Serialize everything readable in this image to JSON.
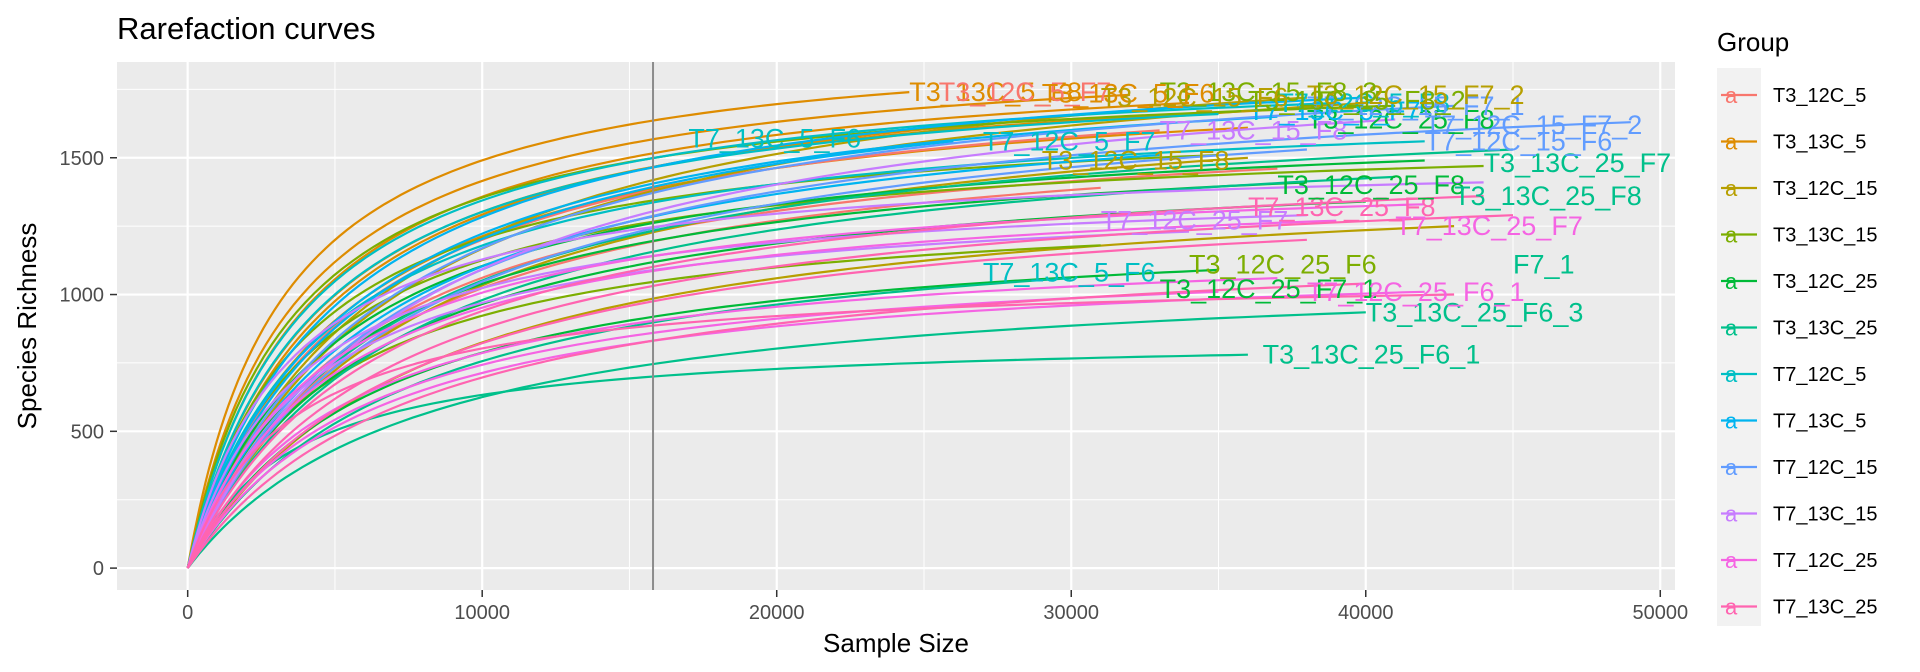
{
  "chart_data": {
    "type": "line",
    "title": "Rarefaction curves",
    "xlabel": "Sample Size",
    "ylabel": "Species Richness",
    "xlim": [
      -2400,
      50500
    ],
    "ylim": [
      -80,
      1850
    ],
    "x_ticks": [
      0,
      10000,
      20000,
      30000,
      40000,
      50000
    ],
    "x_tick_labels": [
      "0",
      "10000",
      "20000",
      "30000",
      "40000",
      "50000"
    ],
    "y_ticks": [
      0,
      500,
      1000,
      1500
    ],
    "y_tick_labels": [
      "0",
      "500",
      "1000",
      "1500"
    ],
    "grid": true,
    "vline": {
      "x": 15800,
      "color": "#8c8c8c"
    },
    "legend": {
      "title": "Group",
      "position": "right",
      "key_glyph": "a",
      "entries": [
        {
          "label": "T3_12C_5",
          "color": "#F8766D"
        },
        {
          "label": "T3_13C_5",
          "color": "#DE8C00"
        },
        {
          "label": "T3_12C_15",
          "color": "#B79F00"
        },
        {
          "label": "T3_13C_15",
          "color": "#7CAE00"
        },
        {
          "label": "T3_12C_25",
          "color": "#00BA38"
        },
        {
          "label": "T3_13C_25",
          "color": "#00C08B"
        },
        {
          "label": "T7_12C_5",
          "color": "#00BFC4"
        },
        {
          "label": "T7_13C_5",
          "color": "#00B4F0"
        },
        {
          "label": "T7_12C_15",
          "color": "#619CFF"
        },
        {
          "label": "T7_13C_15",
          "color": "#C77CFF"
        },
        {
          "label": "T7_12C_25",
          "color": "#F564E3"
        },
        {
          "label": "T7_13C_25",
          "color": "#FF64B0"
        }
      ]
    },
    "series": [
      {
        "name": "T3_13C_5",
        "group": 1,
        "xmax": 24500,
        "ymax": 1740
      },
      {
        "name": "T3_13C_5",
        "group": 1,
        "xmax": 32000,
        "ymax": 1730
      },
      {
        "name": "T3_13C_5",
        "group": 1,
        "xmax": 34000,
        "ymax": 1700
      },
      {
        "name": "T3_13C_5",
        "group": 1,
        "xmax": 38000,
        "ymax": 1680
      },
      {
        "name": "T3_13C_5",
        "group": 1,
        "xmax": 29000,
        "ymax": 1640
      },
      {
        "name": "T3_13C_5",
        "group": 1,
        "xmax": 36000,
        "ymax": 1610
      },
      {
        "name": "T3_12C_5",
        "group": 0,
        "xmax": 33000,
        "ymax": 1600
      },
      {
        "name": "T3_12C_5",
        "group": 0,
        "xmax": 37000,
        "ymax": 1460
      },
      {
        "name": "T3_12C_5",
        "group": 0,
        "xmax": 31000,
        "ymax": 1390
      },
      {
        "name": "T3_12C_15",
        "group": 2,
        "xmax": 38000,
        "ymax": 1720
      },
      {
        "name": "T3_12C_15",
        "group": 2,
        "xmax": 40000,
        "ymax": 1700
      },
      {
        "name": "T3_12C_15",
        "group": 2,
        "xmax": 36000,
        "ymax": 1500
      },
      {
        "name": "T3_12C_15",
        "group": 2,
        "xmax": 43000,
        "ymax": 1250
      },
      {
        "name": "T3_13C_15",
        "group": 3,
        "xmax": 41000,
        "ymax": 1690
      },
      {
        "name": "T3_13C_15",
        "group": 3,
        "xmax": 35000,
        "ymax": 1510
      },
      {
        "name": "T3_13C_15",
        "group": 3,
        "xmax": 44000,
        "ymax": 1470
      },
      {
        "name": "T3_13C_15",
        "group": 3,
        "xmax": 31000,
        "ymax": 1180
      },
      {
        "name": "T3_12C_25",
        "group": 4,
        "xmax": 42000,
        "ymax": 1490
      },
      {
        "name": "T3_12C_25",
        "group": 4,
        "xmax": 38000,
        "ymax": 1410
      },
      {
        "name": "T3_12C_25",
        "group": 4,
        "xmax": 40000,
        "ymax": 1340
      },
      {
        "name": "T3_12C_25",
        "group": 4,
        "xmax": 35000,
        "ymax": 1090
      },
      {
        "name": "T3_13C_25",
        "group": 5,
        "xmax": 45000,
        "ymax": 1530
      },
      {
        "name": "T3_13C_25",
        "group": 5,
        "xmax": 41000,
        "ymax": 1430
      },
      {
        "name": "T3_13C_25",
        "group": 5,
        "xmax": 30000,
        "ymax": 1060
      },
      {
        "name": "T3_13C_25_F6_3",
        "group": 5,
        "xmax": 40000,
        "ymax": 935
      },
      {
        "name": "T3_13C_25_F6_1",
        "group": 5,
        "xmax": 36000,
        "ymax": 780
      },
      {
        "name": "T7_12C_5",
        "group": 6,
        "xmax": 39000,
        "ymax": 1700
      },
      {
        "name": "T7_12C_5",
        "group": 6,
        "xmax": 35000,
        "ymax": 1660
      },
      {
        "name": "T7_12C_5",
        "group": 6,
        "xmax": 42000,
        "ymax": 1560
      },
      {
        "name": "T7_13C_5",
        "group": 7,
        "xmax": 40000,
        "ymax": 1720
      },
      {
        "name": "T7_13C_5",
        "group": 7,
        "xmax": 37000,
        "ymax": 1650
      },
      {
        "name": "T7_13C_5",
        "group": 7,
        "xmax": 26000,
        "ymax": 1560
      },
      {
        "name": "T7_13C_5",
        "group": 7,
        "xmax": 33000,
        "ymax": 1510
      },
      {
        "name": "T7_12C_15",
        "group": 8,
        "xmax": 43000,
        "ymax": 1690
      },
      {
        "name": "T7_12C_15",
        "group": 8,
        "xmax": 49000,
        "ymax": 1630
      },
      {
        "name": "T7_12C_15",
        "group": 8,
        "xmax": 38000,
        "ymax": 1530
      },
      {
        "name": "T7_13C_15",
        "group": 9,
        "xmax": 41000,
        "ymax": 1640
      },
      {
        "name": "T7_13C_15",
        "group": 9,
        "xmax": 44000,
        "ymax": 1410
      },
      {
        "name": "T7_13C_15",
        "group": 9,
        "xmax": 38000,
        "ymax": 1290
      },
      {
        "name": "T7_13C_15",
        "group": 9,
        "xmax": 34000,
        "ymax": 1230
      },
      {
        "name": "T7_12C_25",
        "group": 10,
        "xmax": 42000,
        "ymax": 1330
      },
      {
        "name": "T7_12C_25",
        "group": 10,
        "xmax": 39000,
        "ymax": 1270
      },
      {
        "name": "T7_12C_25",
        "group": 10,
        "xmax": 37000,
        "ymax": 1060
      },
      {
        "name": "T7_12C_25",
        "group": 10,
        "xmax": 35000,
        "ymax": 1010
      },
      {
        "name": "T7_12C_25_F6_1",
        "group": 10,
        "xmax": 42000,
        "ymax": 1010
      },
      {
        "name": "T7_13C_25",
        "group": 11,
        "xmax": 44000,
        "ymax": 1360
      },
      {
        "name": "T7_13C_25",
        "group": 11,
        "xmax": 45000,
        "ymax": 1290
      },
      {
        "name": "T7_13C_25",
        "group": 11,
        "xmax": 38000,
        "ymax": 1200
      },
      {
        "name": "T7_13C_25",
        "group": 11,
        "xmax": 40000,
        "ymax": 1040
      },
      {
        "name": "T7_13C_25",
        "group": 11,
        "xmax": 43000,
        "ymax": 1000
      }
    ],
    "labels": [
      {
        "text": "T3_13C_25_F6_1",
        "x": 36500,
        "y": 780,
        "group": 5
      },
      {
        "text": "T3_13C_25_F6_3",
        "x": 40000,
        "y": 935,
        "group": 5
      },
      {
        "text": "T3_12C_25_F7_1",
        "x": 33000,
        "y": 1020,
        "group": 4
      },
      {
        "text": "T7_12C_25_F6_1",
        "x": 38000,
        "y": 1010,
        "group": 10
      },
      {
        "text": "T7_13C_5_F6",
        "x": 27000,
        "y": 1080,
        "group": 6
      },
      {
        "text": "T3_12C_25_F6",
        "x": 34000,
        "y": 1110,
        "group": 3
      },
      {
        "text": "F7_1",
        "x": 45000,
        "y": 1110,
        "group": 5
      },
      {
        "text": "T7_12C_25_F7",
        "x": 31000,
        "y": 1270,
        "group": 9
      },
      {
        "text": "T7_13C_25_F8",
        "x": 36000,
        "y": 1320,
        "group": 11
      },
      {
        "text": "T7_13C_25_F7",
        "x": 41000,
        "y": 1250,
        "group": 10
      },
      {
        "text": "T3_12C_25_F8",
        "x": 37000,
        "y": 1400,
        "group": 4
      },
      {
        "text": "T3_13C_25_F8",
        "x": 43000,
        "y": 1360,
        "group": 5
      },
      {
        "text": "T3_13C_25_F7",
        "x": 44000,
        "y": 1480,
        "group": 5
      },
      {
        "text": "T3_12C_15_F8",
        "x": 29000,
        "y": 1490,
        "group": 2
      },
      {
        "text": "T7_12C_15_F6",
        "x": 42000,
        "y": 1560,
        "group": 8
      },
      {
        "text": "T7_13C_5_F6",
        "x": 17000,
        "y": 1570,
        "group": 6
      },
      {
        "text": "T7_12C_5_F7",
        "x": 27000,
        "y": 1560,
        "group": 6
      },
      {
        "text": "T7_13C_15_F8",
        "x": 33000,
        "y": 1600,
        "group": 9
      },
      {
        "text": "T3_12C_25_F8",
        "x": 38000,
        "y": 1640,
        "group": 4
      },
      {
        "text": "T7_12C_15_F7_2",
        "x": 42000,
        "y": 1620,
        "group": 8
      },
      {
        "text": "T7_13C_5_F7",
        "x": 36000,
        "y": 1670,
        "group": 7
      },
      {
        "text": "T7_12C_5_F8",
        "x": 37000,
        "y": 1700,
        "group": 6
      },
      {
        "text": "T7_12C_15_F7_1",
        "x": 38000,
        "y": 1690,
        "group": 8
      },
      {
        "text": "T3_13C_15_F8_2",
        "x": 36000,
        "y": 1710,
        "group": 3
      },
      {
        "text": "T3_12C_15_F7_2",
        "x": 38000,
        "y": 1730,
        "group": 2
      },
      {
        "text": "T3_13C_15_F8_3",
        "x": 33000,
        "y": 1740,
        "group": 3
      },
      {
        "text": "T3_13C_5_F8",
        "x": 24500,
        "y": 1740,
        "group": 1
      },
      {
        "text": "T3_12C_5_F7",
        "x": 25500,
        "y": 1740,
        "group": 0
      },
      {
        "text": "T3_13C_5_F6",
        "x": 29000,
        "y": 1735,
        "group": 1
      },
      {
        "text": "T3_12C_15_F6",
        "x": 31000,
        "y": 1720,
        "group": 2
      }
    ]
  }
}
